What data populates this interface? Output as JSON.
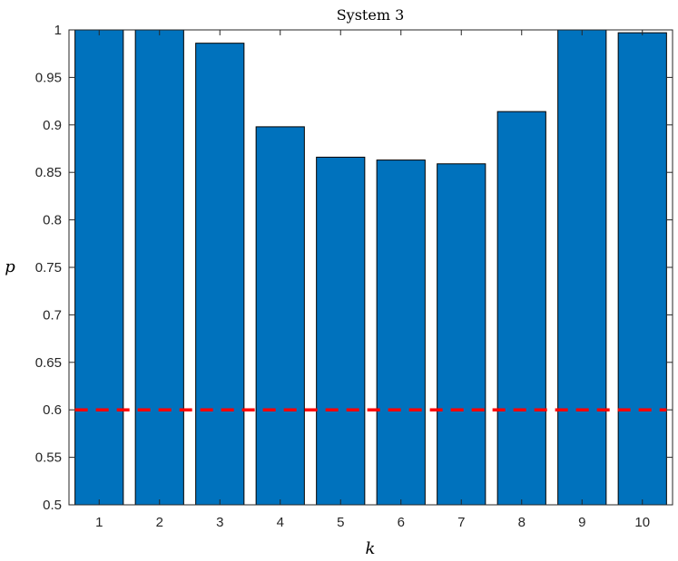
{
  "chart_data": {
    "type": "bar",
    "title": "System 3",
    "xlabel": "k",
    "ylabel": "p",
    "categories": [
      "1",
      "2",
      "3",
      "4",
      "5",
      "6",
      "7",
      "8",
      "9",
      "10"
    ],
    "values": [
      1.0,
      1.0,
      0.986,
      0.898,
      0.866,
      0.863,
      0.859,
      0.914,
      1.0,
      0.997
    ],
    "ylim": [
      0.5,
      1.0
    ],
    "yticks": [
      0.5,
      0.55,
      0.6,
      0.65,
      0.7,
      0.75,
      0.8,
      0.85,
      0.9,
      0.95,
      1.0
    ],
    "ytick_labels": [
      "0.5",
      "0.55",
      "0.6",
      "0.65",
      "0.7",
      "0.75",
      "0.8",
      "0.85",
      "0.9",
      "0.95",
      "1"
    ],
    "reference_line": {
      "y": 0.6,
      "style": "dashed",
      "color": "#ff0000"
    },
    "bar_color": "#0072bd",
    "grid": false,
    "legend": "none"
  }
}
